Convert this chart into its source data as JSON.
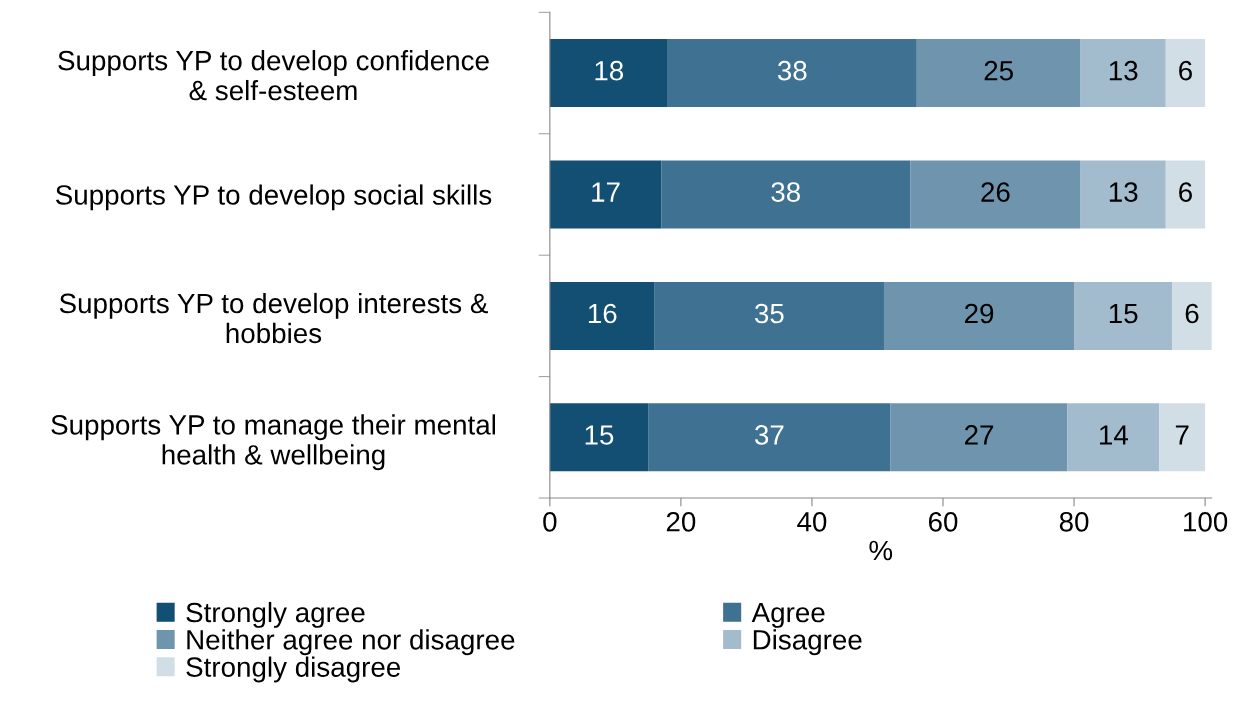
{
  "chart_data": {
    "type": "bar",
    "orientation": "horizontal",
    "stacked": true,
    "xlabel": "%",
    "categories": [
      "Supports YP to develop confidence\n& self-esteem",
      "Supports YP to develop social skills",
      "Supports YP to develop interests &\nhobbies",
      "Supports YP to manage their mental\nhealth & wellbeing"
    ],
    "series": [
      {
        "name": "Strongly agree",
        "color": "#124f73",
        "values": [
          18,
          17,
          16,
          15
        ]
      },
      {
        "name": "Agree",
        "color": "#3f7292",
        "values": [
          38,
          38,
          35,
          37
        ]
      },
      {
        "name": "Neither agree nor disagree",
        "color": "#6f95ae",
        "values": [
          25,
          26,
          29,
          27
        ]
      },
      {
        "name": "Disagree",
        "color": "#a3bccd",
        "values": [
          13,
          13,
          15,
          14
        ]
      },
      {
        "name": "Strongly disagree",
        "color": "#d2dee6",
        "values": [
          6,
          6,
          6,
          7
        ]
      }
    ],
    "xlim": [
      0,
      101
    ],
    "xticks": [
      0,
      20,
      40,
      60,
      80,
      100
    ],
    "data_labels": true,
    "grid": false,
    "legend": "bottom"
  }
}
